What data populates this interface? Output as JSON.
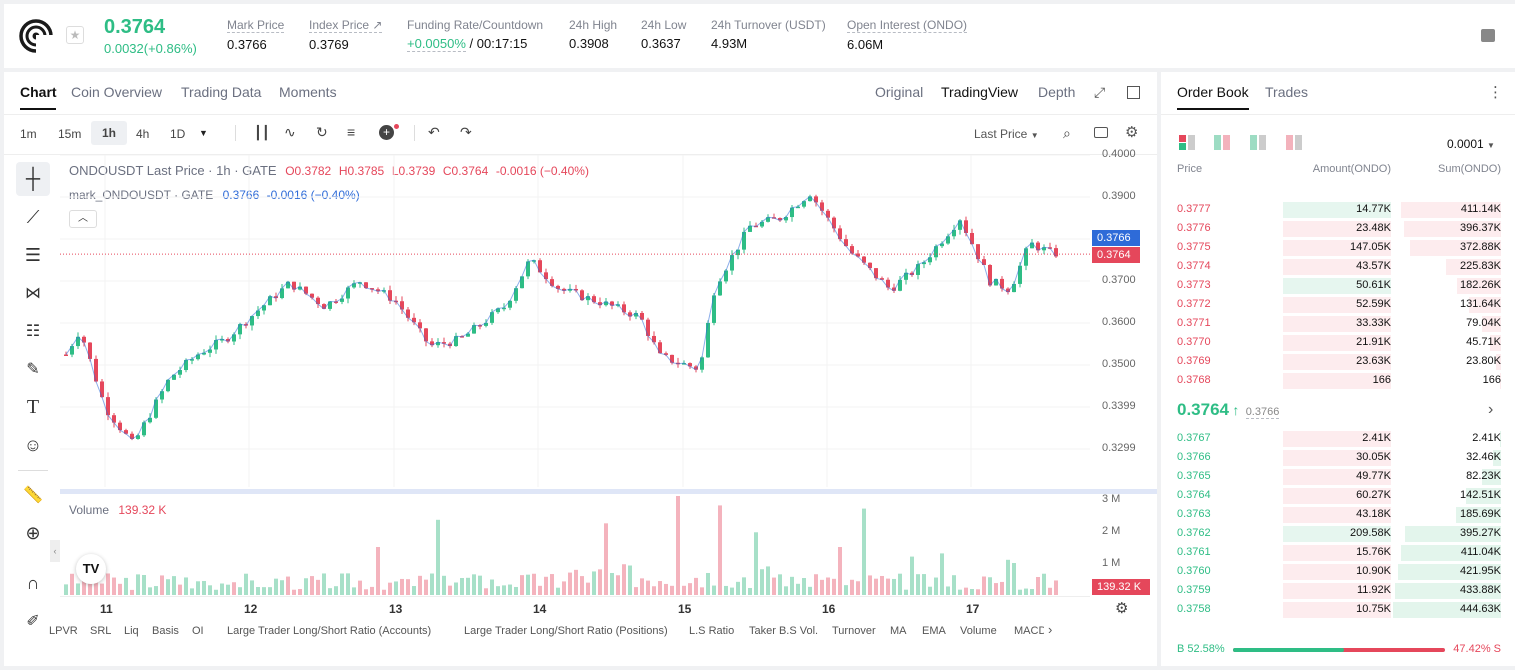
{
  "ticker": {
    "price": "0.3764",
    "change": "0.0032(+0.86%)"
  },
  "stats": [
    {
      "label": "Mark Price",
      "value": "0.3766"
    },
    {
      "label": "Index Price ↗",
      "value": "0.3769"
    },
    {
      "label": "Funding Rate/Countdown",
      "value_green": "+0.0050%",
      "value": " / 00:17:15"
    },
    {
      "label": "24h High",
      "value": "0.3908"
    },
    {
      "label": "24h Low",
      "value": "0.3637"
    },
    {
      "label": "24h Turnover (USDT)",
      "value": "4.93M"
    },
    {
      "label": "Open Interest (ONDO)",
      "value": "6.06M"
    }
  ],
  "chart_tabs": [
    "Chart",
    "Coin Overview",
    "Trading Data",
    "Moments"
  ],
  "view_tabs": [
    "Original",
    "TradingView",
    "Depth"
  ],
  "timeframes": [
    "1m",
    "15m",
    "1h",
    "4h",
    "1D"
  ],
  "last_price_label": "Last Price",
  "legend": {
    "line1": {
      "name": "ONDOUSDT Last Price · 1h · GATE",
      "o": "O0.3782",
      "h": "H0.3785",
      "l": "L0.3739",
      "c": "C0.3764",
      "chg": "-0.0016 (−0.40%)"
    },
    "line2": {
      "name": "mark_ONDOUSDT · GATE",
      "v": "0.3766",
      "chg": "-0.0016 (−0.40%)"
    }
  },
  "volume_legend": {
    "label": "Volume",
    "value": "139.32 K"
  },
  "price_axis": [
    "0.4000",
    "0.3900",
    "0.3800",
    "0.3700",
    "0.3600",
    "0.3500",
    "0.3399",
    "0.3299"
  ],
  "price_tags": {
    "mark": "0.3766",
    "last": "0.3764"
  },
  "volume_axis": [
    "3 M",
    "2 M",
    "1 M"
  ],
  "volume_tag": "139.32 K",
  "time_axis": [
    "11",
    "12",
    "13",
    "14",
    "15",
    "16",
    "17"
  ],
  "indicators": [
    "LPVR",
    "SRL",
    "Liq",
    "Basis",
    "OI",
    "Large Trader Long/Short Ratio (Accounts)",
    "Large Trader Long/Short Ratio (Positions)",
    "L.S Ratio",
    "Taker B.S Vol.",
    "Turnover",
    "MA",
    "EMA",
    "Volume",
    "MACD"
  ],
  "orderbook": {
    "tabs": [
      "Order Book",
      "Trades"
    ],
    "precision": "0.0001",
    "headers": [
      "Price",
      "Amount(ONDO)",
      "Sum(ONDO)"
    ],
    "asks": [
      {
        "price": "0.3777",
        "amount": "14.77K",
        "sum": "411.14K",
        "amt_frac": 0.07,
        "sum_frac": 0.93
      },
      {
        "price": "0.3776",
        "amount": "23.48K",
        "sum": "396.37K",
        "amt_frac": 0.11,
        "sum_frac": 0.9
      },
      {
        "price": "0.3775",
        "amount": "147.05K",
        "sum": "372.88K",
        "amt_frac": 0.7,
        "sum_frac": 0.84
      },
      {
        "price": "0.3774",
        "amount": "43.57K",
        "sum": "225.83K",
        "amt_frac": 0.21,
        "sum_frac": 0.51
      },
      {
        "price": "0.3773",
        "amount": "50.61K",
        "sum": "182.26K",
        "amt_frac": 0.24,
        "sum_frac": 0.41
      },
      {
        "price": "0.3772",
        "amount": "52.59K",
        "sum": "131.64K",
        "amt_frac": 0.25,
        "sum_frac": 0.3
      },
      {
        "price": "0.3771",
        "amount": "33.33K",
        "sum": "79.04K",
        "amt_frac": 0.16,
        "sum_frac": 0.18
      },
      {
        "price": "0.3770",
        "amount": "21.91K",
        "sum": "45.71K",
        "amt_frac": 0.1,
        "sum_frac": 0.1
      },
      {
        "price": "0.3769",
        "amount": "23.63K",
        "sum": "23.80K",
        "amt_frac": 0.11,
        "sum_frac": 0.05
      },
      {
        "price": "0.3768",
        "amount": "166",
        "sum": "166",
        "amt_frac": 0.01,
        "sum_frac": 0.01
      }
    ],
    "mid": {
      "price": "0.3764",
      "mark": "0.3766"
    },
    "bids": [
      {
        "price": "0.3767",
        "amount": "2.41K",
        "sum": "2.41K",
        "amt_frac": 0.01,
        "sum_frac": 0.01
      },
      {
        "price": "0.3766",
        "amount": "30.05K",
        "sum": "32.46K",
        "amt_frac": 0.14,
        "sum_frac": 0.07
      },
      {
        "price": "0.3765",
        "amount": "49.77K",
        "sum": "82.23K",
        "amt_frac": 0.24,
        "sum_frac": 0.18
      },
      {
        "price": "0.3764",
        "amount": "60.27K",
        "sum": "142.51K",
        "amt_frac": 0.29,
        "sum_frac": 0.32
      },
      {
        "price": "0.3763",
        "amount": "43.18K",
        "sum": "185.69K",
        "amt_frac": 0.21,
        "sum_frac": 0.42
      },
      {
        "price": "0.3762",
        "amount": "209.58K",
        "sum": "395.27K",
        "amt_frac": 1.0,
        "sum_frac": 0.89
      },
      {
        "price": "0.3761",
        "amount": "15.76K",
        "sum": "411.04K",
        "amt_frac": 0.08,
        "sum_frac": 0.93
      },
      {
        "price": "0.3760",
        "amount": "10.90K",
        "sum": "421.95K",
        "amt_frac": 0.05,
        "sum_frac": 0.95
      },
      {
        "price": "0.3759",
        "amount": "11.92K",
        "sum": "433.88K",
        "amt_frac": 0.06,
        "sum_frac": 0.98
      },
      {
        "price": "0.3758",
        "amount": "10.75K",
        "sum": "444.63K",
        "amt_frac": 0.05,
        "sum_frac": 1.0
      }
    ],
    "ratio": {
      "buy": "B 52.58%",
      "sell": "47.42% S",
      "buy_frac": 0.5258
    }
  },
  "colors": {
    "green": "#2ebd85",
    "red": "#e5475b",
    "blue": "#2e6bd8"
  }
}
